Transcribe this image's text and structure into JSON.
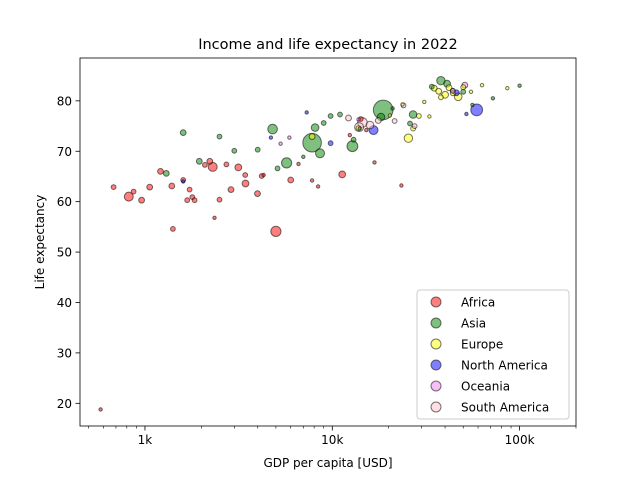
{
  "chart_data": {
    "type": "scatter",
    "title": "Income and life expectancy in 2022",
    "xlabel": "GDP per capita [USD]",
    "ylabel": "Life expectancy",
    "xscale": "log",
    "xlim": [
      450,
      200000
    ],
    "ylim": [
      15.5,
      88.5
    ],
    "xticks": [
      {
        "value": 1000,
        "label": "1k"
      },
      {
        "value": 10000,
        "label": "10k"
      },
      {
        "value": 100000,
        "label": "100k"
      }
    ],
    "yticks": [
      20,
      30,
      40,
      50,
      60,
      70,
      80
    ],
    "grid": false,
    "legend_position": "lower right",
    "point_size": "population",
    "series": [
      {
        "name": "Africa",
        "color": "#ff0000",
        "points": [
          {
            "x": 580,
            "y": 18.8,
            "s": 1
          },
          {
            "x": 680,
            "y": 62.9,
            "s": 2
          },
          {
            "x": 820,
            "y": 61.0,
            "s": 7
          },
          {
            "x": 870,
            "y": 62.0,
            "s": 2
          },
          {
            "x": 960,
            "y": 60.3,
            "s": 3
          },
          {
            "x": 1060,
            "y": 62.9,
            "s": 3
          },
          {
            "x": 1210,
            "y": 66.0,
            "s": 3
          },
          {
            "x": 1390,
            "y": 63.1,
            "s": 3
          },
          {
            "x": 1410,
            "y": 54.6,
            "s": 2
          },
          {
            "x": 1600,
            "y": 64.3,
            "s": 2
          },
          {
            "x": 1680,
            "y": 60.3,
            "s": 2
          },
          {
            "x": 1730,
            "y": 62.4,
            "s": 2
          },
          {
            "x": 1790,
            "y": 60.9,
            "s": 2
          },
          {
            "x": 1840,
            "y": 60.3,
            "s": 2
          },
          {
            "x": 2090,
            "y": 67.3,
            "s": 2
          },
          {
            "x": 2220,
            "y": 68.0,
            "s": 3
          },
          {
            "x": 2300,
            "y": 66.9,
            "s": 7
          },
          {
            "x": 2350,
            "y": 56.8,
            "s": 1
          },
          {
            "x": 2500,
            "y": 60.4,
            "s": 2
          },
          {
            "x": 2720,
            "y": 67.4,
            "s": 2
          },
          {
            "x": 2880,
            "y": 62.4,
            "s": 3
          },
          {
            "x": 3150,
            "y": 66.8,
            "s": 4
          },
          {
            "x": 3430,
            "y": 65.3,
            "s": 2
          },
          {
            "x": 3440,
            "y": 63.6,
            "s": 4
          },
          {
            "x": 3990,
            "y": 61.6,
            "s": 3
          },
          {
            "x": 4200,
            "y": 65.1,
            "s": 2
          },
          {
            "x": 4300,
            "y": 65.3,
            "s": 1
          },
          {
            "x": 5000,
            "y": 54.1,
            "s": 9
          },
          {
            "x": 6000,
            "y": 64.3,
            "s": 3
          },
          {
            "x": 6600,
            "y": 67.5,
            "s": 1
          },
          {
            "x": 7800,
            "y": 64.2,
            "s": 1
          },
          {
            "x": 8400,
            "y": 63.0,
            "s": 1
          },
          {
            "x": 11300,
            "y": 65.4,
            "s": 4
          },
          {
            "x": 12400,
            "y": 73.2,
            "s": 1
          },
          {
            "x": 14200,
            "y": 76.4,
            "s": 2
          },
          {
            "x": 15200,
            "y": 74.2,
            "s": 1
          },
          {
            "x": 16800,
            "y": 67.8,
            "s": 1
          },
          {
            "x": 23400,
            "y": 63.2,
            "s": 1
          }
        ]
      },
      {
        "name": "Asia",
        "color": "#008000",
        "points": [
          {
            "x": 1300,
            "y": 65.6,
            "s": 3
          },
          {
            "x": 1600,
            "y": 73.7,
            "s": 3
          },
          {
            "x": 1950,
            "y": 68.0,
            "s": 3
          },
          {
            "x": 2500,
            "y": 72.9,
            "s": 2
          },
          {
            "x": 3000,
            "y": 70.1,
            "s": 2
          },
          {
            "x": 4000,
            "y": 70.3,
            "s": 2
          },
          {
            "x": 4800,
            "y": 74.4,
            "s": 8
          },
          {
            "x": 5100,
            "y": 66.6,
            "s": 2
          },
          {
            "x": 5700,
            "y": 67.7,
            "s": 9
          },
          {
            "x": 7000,
            "y": 68.9,
            "s": 1
          },
          {
            "x": 7800,
            "y": 71.7,
            "s": 30
          },
          {
            "x": 8100,
            "y": 74.7,
            "s": 5
          },
          {
            "x": 8600,
            "y": 69.6,
            "s": 7
          },
          {
            "x": 9000,
            "y": 75.6,
            "s": 2
          },
          {
            "x": 9800,
            "y": 77.0,
            "s": 2
          },
          {
            "x": 11000,
            "y": 77.3,
            "s": 2
          },
          {
            "x": 12800,
            "y": 71.0,
            "s": 10
          },
          {
            "x": 13000,
            "y": 72.3,
            "s": 2
          },
          {
            "x": 14000,
            "y": 74.5,
            "s": 1
          },
          {
            "x": 18700,
            "y": 78.2,
            "s": 33
          },
          {
            "x": 18200,
            "y": 76.8,
            "s": 5
          },
          {
            "x": 21000,
            "y": 78.5,
            "s": 1
          },
          {
            "x": 26000,
            "y": 75.5,
            "s": 2
          },
          {
            "x": 27000,
            "y": 77.3,
            "s": 5
          },
          {
            "x": 34000,
            "y": 82.8,
            "s": 2
          },
          {
            "x": 38000,
            "y": 84.0,
            "s": 6
          },
          {
            "x": 41000,
            "y": 83.4,
            "s": 4
          },
          {
            "x": 44000,
            "y": 82.0,
            "s": 2
          },
          {
            "x": 50000,
            "y": 81.8,
            "s": 2
          },
          {
            "x": 56000,
            "y": 79.2,
            "s": 1
          },
          {
            "x": 72000,
            "y": 80.5,
            "s": 1
          },
          {
            "x": 100000,
            "y": 83.0,
            "s": 1
          }
        ]
      },
      {
        "name": "Europe",
        "color": "#ffff00",
        "points": [
          {
            "x": 7800,
            "y": 72.9,
            "s": 3
          },
          {
            "x": 13800,
            "y": 74.6,
            "s": 2
          },
          {
            "x": 20300,
            "y": 77.1,
            "s": 1
          },
          {
            "x": 23700,
            "y": 79.3,
            "s": 1
          },
          {
            "x": 25500,
            "y": 72.6,
            "s": 6
          },
          {
            "x": 27000,
            "y": 74.5,
            "s": 2
          },
          {
            "x": 29000,
            "y": 77.0,
            "s": 2
          },
          {
            "x": 31000,
            "y": 79.8,
            "s": 1
          },
          {
            "x": 33000,
            "y": 76.9,
            "s": 1
          },
          {
            "x": 35000,
            "y": 82.5,
            "s": 3
          },
          {
            "x": 37000,
            "y": 81.9,
            "s": 3
          },
          {
            "x": 38000,
            "y": 80.7,
            "s": 2
          },
          {
            "x": 40000,
            "y": 81.2,
            "s": 4
          },
          {
            "x": 42000,
            "y": 82.6,
            "s": 3
          },
          {
            "x": 44000,
            "y": 81.5,
            "s": 2
          },
          {
            "x": 47000,
            "y": 80.8,
            "s": 5
          },
          {
            "x": 50000,
            "y": 82.7,
            "s": 2
          },
          {
            "x": 55000,
            "y": 81.8,
            "s": 1
          },
          {
            "x": 63000,
            "y": 83.1,
            "s": 1
          },
          {
            "x": 86000,
            "y": 82.5,
            "s": 1
          }
        ]
      },
      {
        "name": "North America",
        "color": "#0000ff",
        "points": [
          {
            "x": 1600,
            "y": 64.0,
            "s": 1
          },
          {
            "x": 4700,
            "y": 72.7,
            "s": 1
          },
          {
            "x": 7300,
            "y": 77.7,
            "s": 1
          },
          {
            "x": 9800,
            "y": 71.6,
            "s": 2
          },
          {
            "x": 16600,
            "y": 74.2,
            "s": 7
          },
          {
            "x": 46000,
            "y": 81.6,
            "s": 3
          },
          {
            "x": 52000,
            "y": 77.4,
            "s": 1
          },
          {
            "x": 59000,
            "y": 78.2,
            "s": 12
          }
        ]
      },
      {
        "name": "Oceania",
        "color": "#ee82ee",
        "points": [
          {
            "x": 5300,
            "y": 71.5,
            "s": 1
          },
          {
            "x": 5900,
            "y": 72.7,
            "s": 1
          },
          {
            "x": 13800,
            "y": 76.3,
            "s": 1
          },
          {
            "x": 44000,
            "y": 82.0,
            "s": 2
          },
          {
            "x": 51000,
            "y": 83.1,
            "s": 3
          }
        ]
      },
      {
        "name": "South America",
        "color": "#ffc0cb",
        "points": [
          {
            "x": 12200,
            "y": 76.6,
            "s": 3
          },
          {
            "x": 13900,
            "y": 74.8,
            "s": 7
          },
          {
            "x": 14500,
            "y": 75.7,
            "s": 8
          },
          {
            "x": 15900,
            "y": 75.2,
            "s": 5
          },
          {
            "x": 17600,
            "y": 76.1,
            "s": 3
          },
          {
            "x": 21500,
            "y": 76.0,
            "s": 2
          },
          {
            "x": 24000,
            "y": 79.1,
            "s": 2
          },
          {
            "x": 27500,
            "y": 75.0,
            "s": 2
          }
        ]
      }
    ]
  }
}
